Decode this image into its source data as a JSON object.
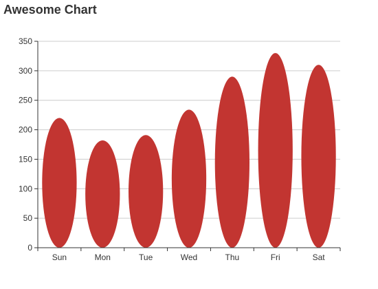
{
  "chart_data": {
    "type": "bar",
    "title": "Awesome Chart",
    "categories": [
      "Sun",
      "Mon",
      "Tue",
      "Wed",
      "Thu",
      "Fri",
      "Sat"
    ],
    "series": [
      {
        "values": [
          220,
          182,
          191,
          234,
          290,
          330,
          310
        ]
      }
    ],
    "xlabel": "",
    "ylabel": "",
    "ylim": [
      0,
      350
    ],
    "yticks": [
      0,
      50,
      100,
      150,
      200,
      250,
      300,
      350
    ],
    "grid": true,
    "bar_shape": "ellipse",
    "colors": {
      "bar": "#c23531",
      "grid": "#cccccc",
      "axis": "#333333"
    }
  }
}
